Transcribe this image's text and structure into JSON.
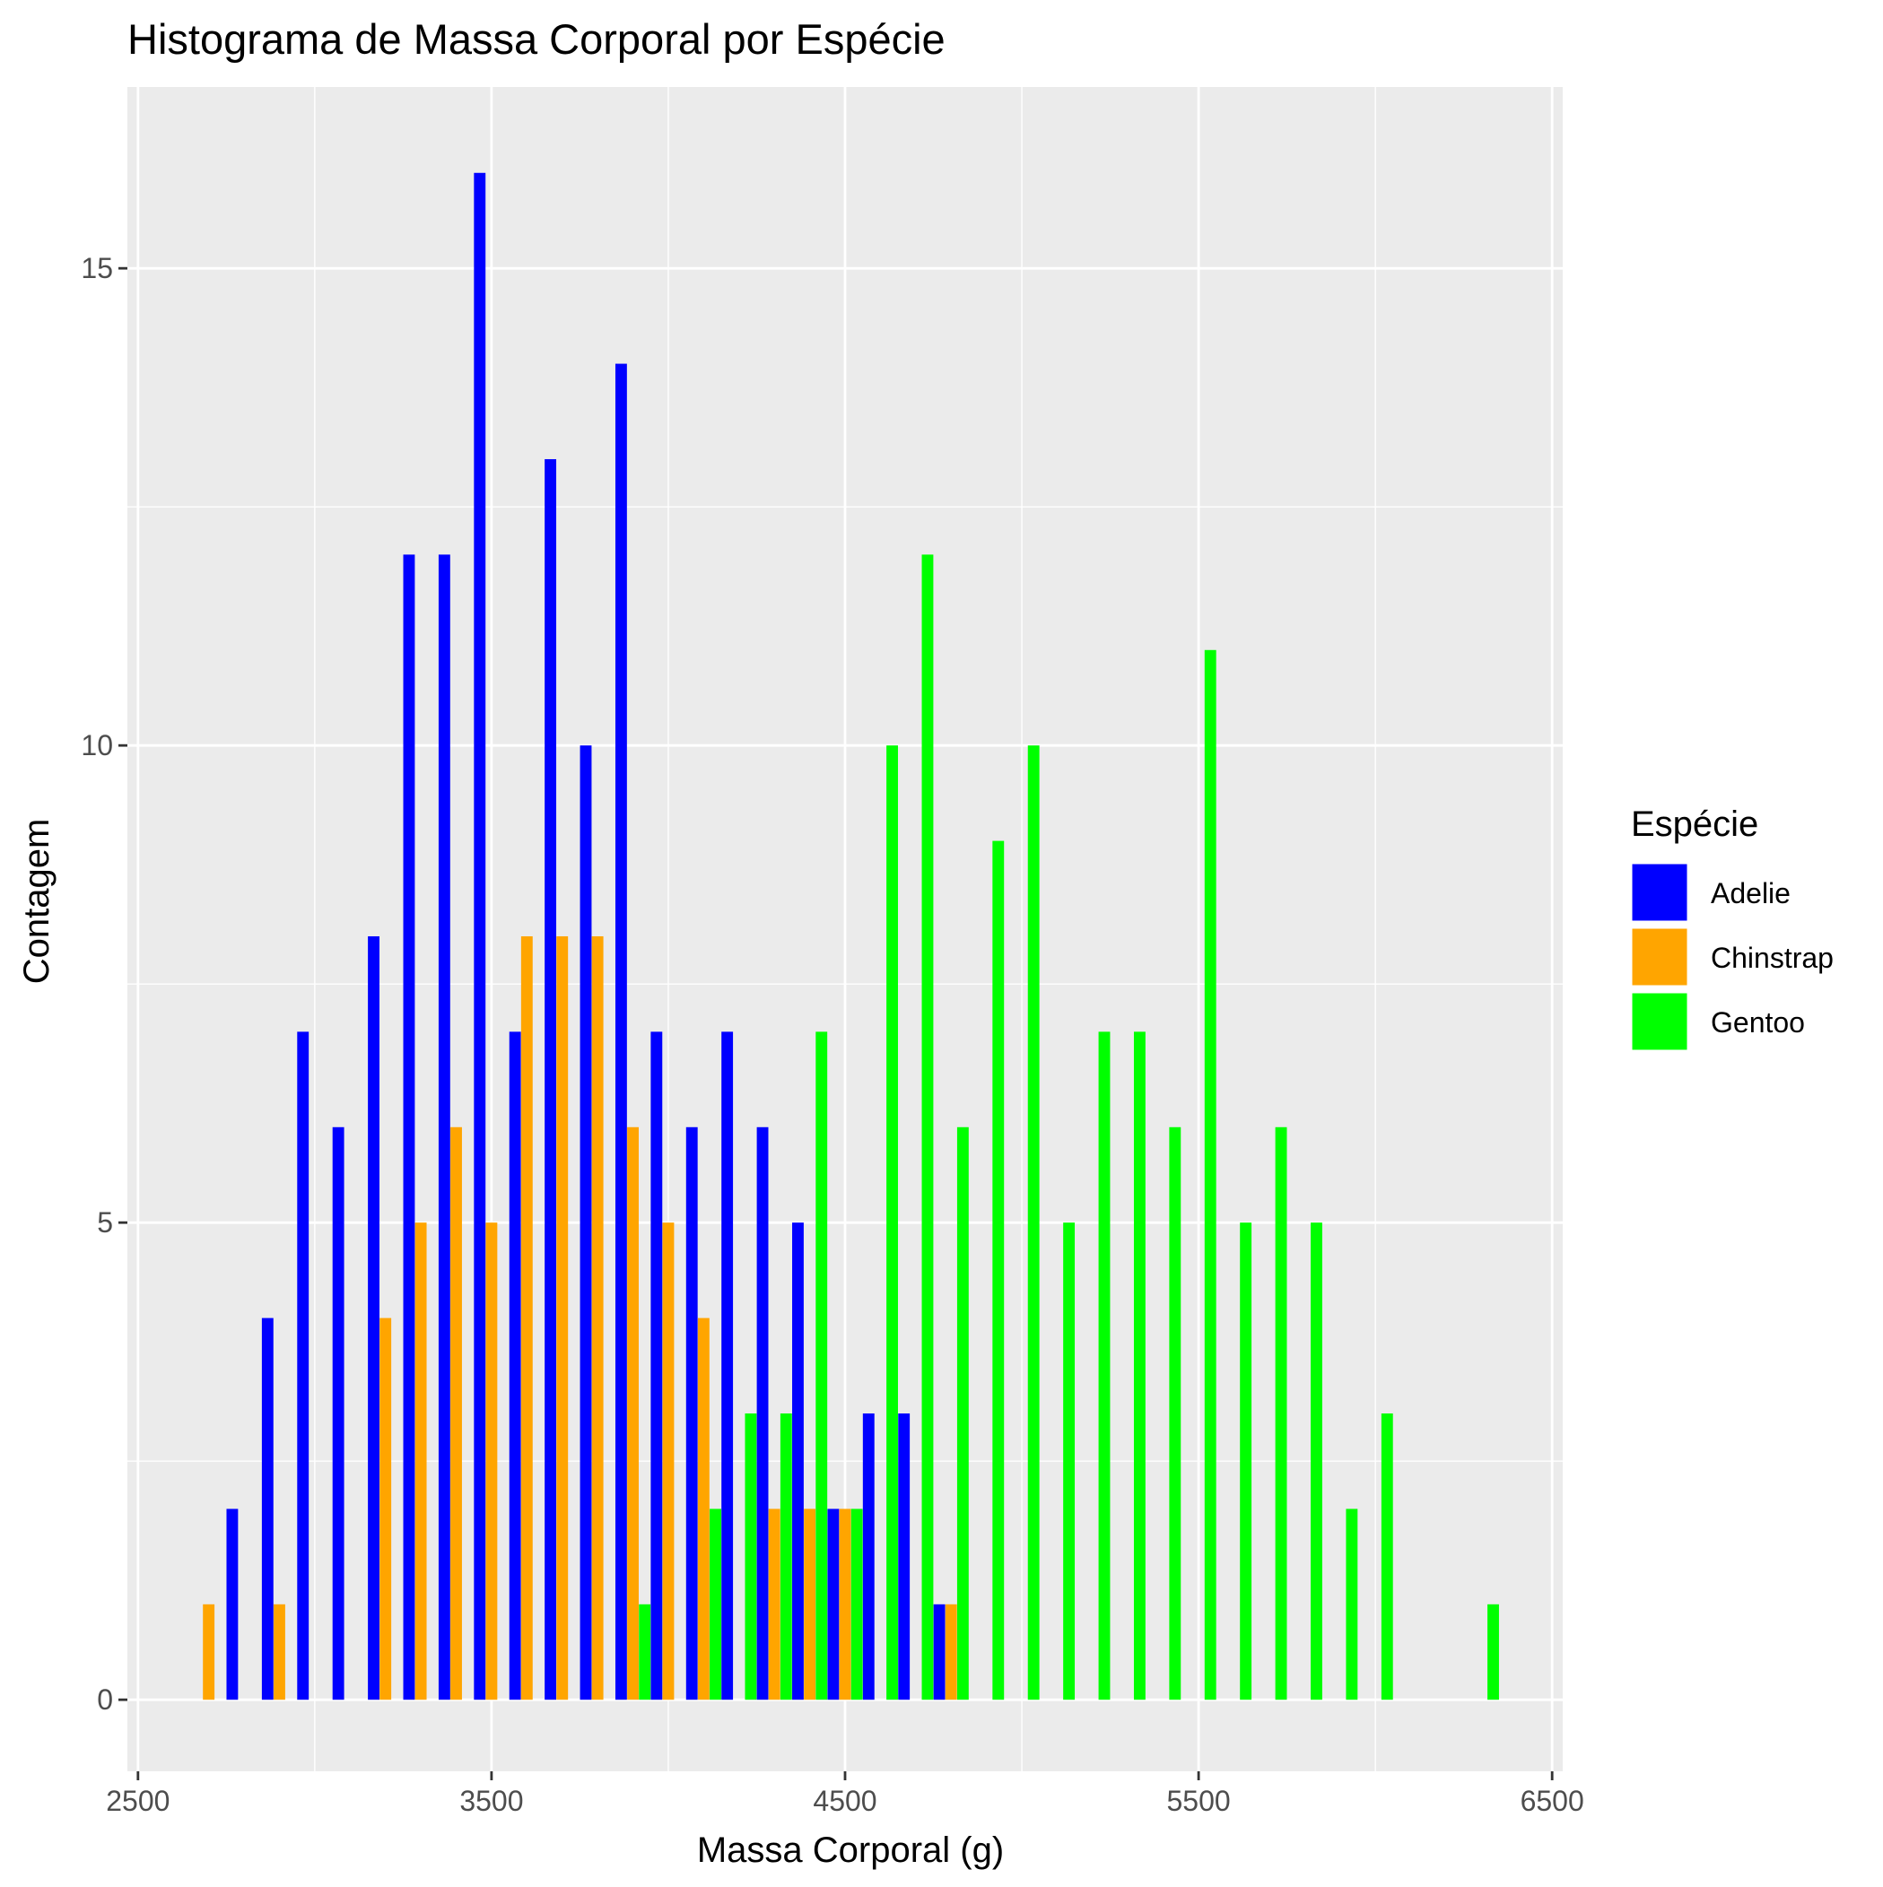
{
  "chart_data": {
    "type": "bar",
    "title": "Histograma de Massa Corporal por Espécie",
    "xlabel": "Massa Corporal (g)",
    "ylabel": "Contagem",
    "x_ticks": [
      2500,
      3500,
      4500,
      5500,
      6500
    ],
    "y_ticks": [
      0,
      5,
      10,
      15
    ],
    "xlim": [
      2470,
      6530
    ],
    "ylim": [
      -0.75,
      16.9
    ],
    "grid": true,
    "legend_position": "right",
    "legend_title": "Espécie",
    "bin_width": 100,
    "bin_centers": [
      2700,
      2800,
      2900,
      3000,
      3100,
      3200,
      3300,
      3400,
      3500,
      3600,
      3700,
      3800,
      3900,
      4000,
      4100,
      4200,
      4300,
      4400,
      4500,
      4600,
      4700,
      4800,
      4900,
      5000,
      5100,
      5200,
      5300,
      5400,
      5500,
      5600,
      5700,
      5800,
      5900,
      6000,
      6100,
      6200,
      6300
    ],
    "series": [
      {
        "name": "Adelie",
        "color": "#0000FF",
        "values": [
          0,
          2,
          4,
          7,
          6,
          8,
          12,
          12,
          16,
          7,
          13,
          10,
          14,
          7,
          6,
          7,
          6,
          5,
          2,
          3,
          3,
          1,
          0,
          0,
          0,
          0,
          0,
          0,
          0,
          0,
          0,
          0,
          0,
          0,
          0,
          0,
          0
        ]
      },
      {
        "name": "Chinstrap",
        "color": "#FFA500",
        "values": [
          1,
          0,
          1,
          0,
          0,
          4,
          5,
          6,
          5,
          8,
          8,
          8,
          6,
          5,
          4,
          0,
          2,
          2,
          2,
          0,
          0,
          1,
          0,
          0,
          0,
          0,
          0,
          0,
          0,
          0,
          0,
          0,
          0,
          0,
          0,
          0,
          0
        ]
      },
      {
        "name": "Gentoo",
        "color": "#00FF00",
        "values": [
          0,
          0,
          0,
          0,
          0,
          0,
          0,
          0,
          0,
          0,
          0,
          0,
          1,
          0,
          2,
          3,
          3,
          7,
          2,
          10,
          12,
          6,
          9,
          10,
          5,
          7,
          7,
          6,
          11,
          5,
          6,
          5,
          2,
          3,
          0,
          0,
          1
        ]
      }
    ]
  }
}
